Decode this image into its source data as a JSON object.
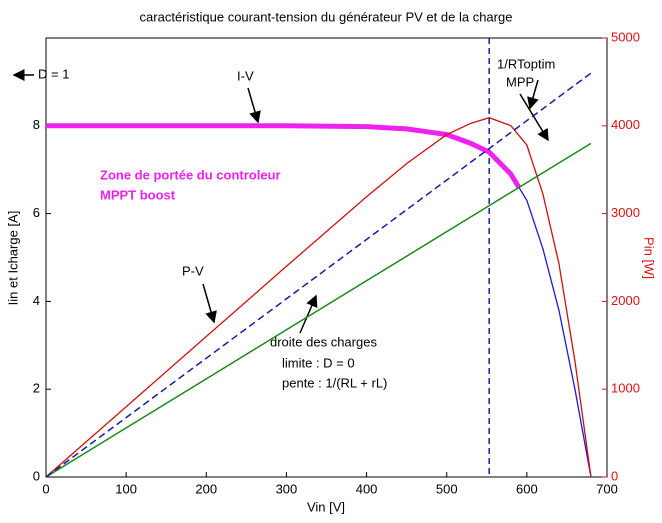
{
  "chart_data": {
    "type": "line",
    "title": "caractéristique courant-tension du générateur PV et de la charge",
    "xlabel": "Vin [V]",
    "ylabel": "Iin et Icharge [A]",
    "y2label": "Pin [W]",
    "xlim": [
      0,
      700
    ],
    "xticks": [
      0,
      100,
      200,
      300,
      400,
      500,
      600,
      700
    ],
    "ylim": [
      0,
      10
    ],
    "yticks": [
      0,
      2,
      4,
      6,
      8
    ],
    "y2lim": [
      0,
      5000
    ],
    "y2ticks": [
      0,
      1000,
      2000,
      3000,
      4000,
      5000
    ],
    "y2color": "#e01010",
    "series": [
      {
        "color": "#1a1ae0",
        "width": 1.3,
        "x": [
          0,
          100,
          200,
          300,
          400,
          450,
          500,
          530,
          553,
          580,
          600,
          620,
          640,
          660,
          680
        ],
        "values": [
          8,
          8,
          8,
          8,
          7.98,
          7.93,
          7.8,
          7.6,
          7.4,
          6.9,
          6.3,
          5.2,
          3.8,
          2.0,
          0
        ]
      },
      {
        "color": "#ee22ee",
        "width": 5,
        "x": [
          0,
          100,
          200,
          300,
          400,
          450,
          500,
          530,
          553,
          580,
          590
        ],
        "values": [
          8,
          8,
          8,
          8,
          7.98,
          7.93,
          7.8,
          7.6,
          7.4,
          6.9,
          6.6
        ]
      },
      {
        "color": "#d01010",
        "width": 1.3,
        "axis": "y2",
        "x": [
          0,
          100,
          200,
          300,
          400,
          450,
          500,
          530,
          553,
          580,
          600,
          620,
          640,
          660,
          680
        ],
        "values": [
          0,
          800,
          1600,
          2400,
          3192,
          3569,
          3900,
          4028,
          4092,
          4002,
          3780,
          3224,
          2432,
          1320,
          0
        ]
      },
      {
        "color": "#1a8a1a",
        "width": 1.5,
        "x": [
          0,
          680
        ],
        "values": [
          0,
          7.6
        ]
      },
      {
        "color": "#1a1aa0",
        "width": 1.5,
        "dash": true,
        "x": [
          0,
          680
        ],
        "values": [
          0,
          9.2
        ]
      }
    ],
    "vline": {
      "x": 553,
      "color": "#1a1aa0"
    },
    "annotations": [
      "D = 1",
      "I-V",
      "MPP",
      "1/RToptim",
      "Zone de portée du controleur",
      "MPPT boost",
      "P-V",
      "droite des charges",
      "limite : D = 0",
      "pente : 1/(RL + rL)"
    ]
  }
}
